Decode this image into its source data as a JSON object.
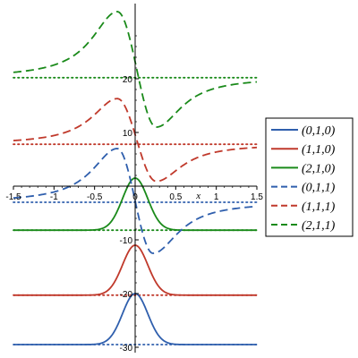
{
  "chart_data": {
    "type": "line",
    "title": "",
    "xlabel": "x",
    "ylabel": "",
    "xlim": [
      -1.5,
      1.5
    ],
    "ylim": [
      -31,
      34
    ],
    "x_ticks": [
      -1.5,
      -1,
      -0.5,
      0,
      0.5,
      1,
      1.5
    ],
    "x_tick_labels": [
      "-1.5",
      "-1",
      "-0.5",
      "0",
      "0.5",
      "1",
      "1.5"
    ],
    "y_ticks": [
      -30,
      -20,
      -10,
      10,
      20
    ],
    "y_tick_labels": [
      "-30",
      "-20",
      "-10",
      "10",
      "20"
    ],
    "grid": false,
    "legend": "right",
    "series": [
      {
        "name": "(0,1,0)",
        "color": "#2f5fad",
        "dash": "solid",
        "kind": "bump",
        "baseline": -29.5,
        "amp": 9.5,
        "center": 0.0
      },
      {
        "name": "(1,1,0)",
        "color": "#c0392b",
        "dash": "solid",
        "kind": "bump",
        "baseline": -20.3,
        "amp": 9.3,
        "center": 0.0
      },
      {
        "name": "(2,1,0)",
        "color": "#1a8a1a",
        "dash": "solid",
        "kind": "bump",
        "baseline": -8.2,
        "amp": 9.7,
        "center": 0.0
      },
      {
        "name": "(0,1,1)",
        "color": "#2f5fad",
        "dash": "dashed",
        "kind": "kink",
        "baseline": -3.0,
        "peak": 7.0,
        "peak_x": -0.22,
        "trough": -12.5,
        "trough_x": 0.22,
        "end_left": -3.0,
        "end_right": -3.0
      },
      {
        "name": "(1,1,1)",
        "color": "#c0392b",
        "dash": "dashed",
        "kind": "kink",
        "baseline": 7.8,
        "peak": 16.3,
        "peak_x": -0.22,
        "trough": 0.9,
        "trough_x": 0.26,
        "end_left": 7.8,
        "end_right": 7.8
      },
      {
        "name": "(2,1,1)",
        "color": "#1a8a1a",
        "dash": "dashed",
        "kind": "kink",
        "baseline": 20.2,
        "peak": 32.5,
        "peak_x": -0.22,
        "trough": 11.0,
        "trough_x": 0.26,
        "end_left": 20.2,
        "end_right": 20.2
      }
    ],
    "reference_lines": [
      {
        "y": -29.5,
        "color": "#2f5fad",
        "style": "dotted"
      },
      {
        "y": -20.3,
        "color": "#c0392b",
        "style": "dotted"
      },
      {
        "y": -8.2,
        "color": "#1a8a1a",
        "style": "dotted"
      },
      {
        "y": -3.0,
        "color": "#2f5fad",
        "style": "dotted"
      },
      {
        "y": 7.8,
        "color": "#c0392b",
        "style": "dotted"
      },
      {
        "y": 20.2,
        "color": "#1a8a1a",
        "style": "dotted"
      }
    ]
  }
}
